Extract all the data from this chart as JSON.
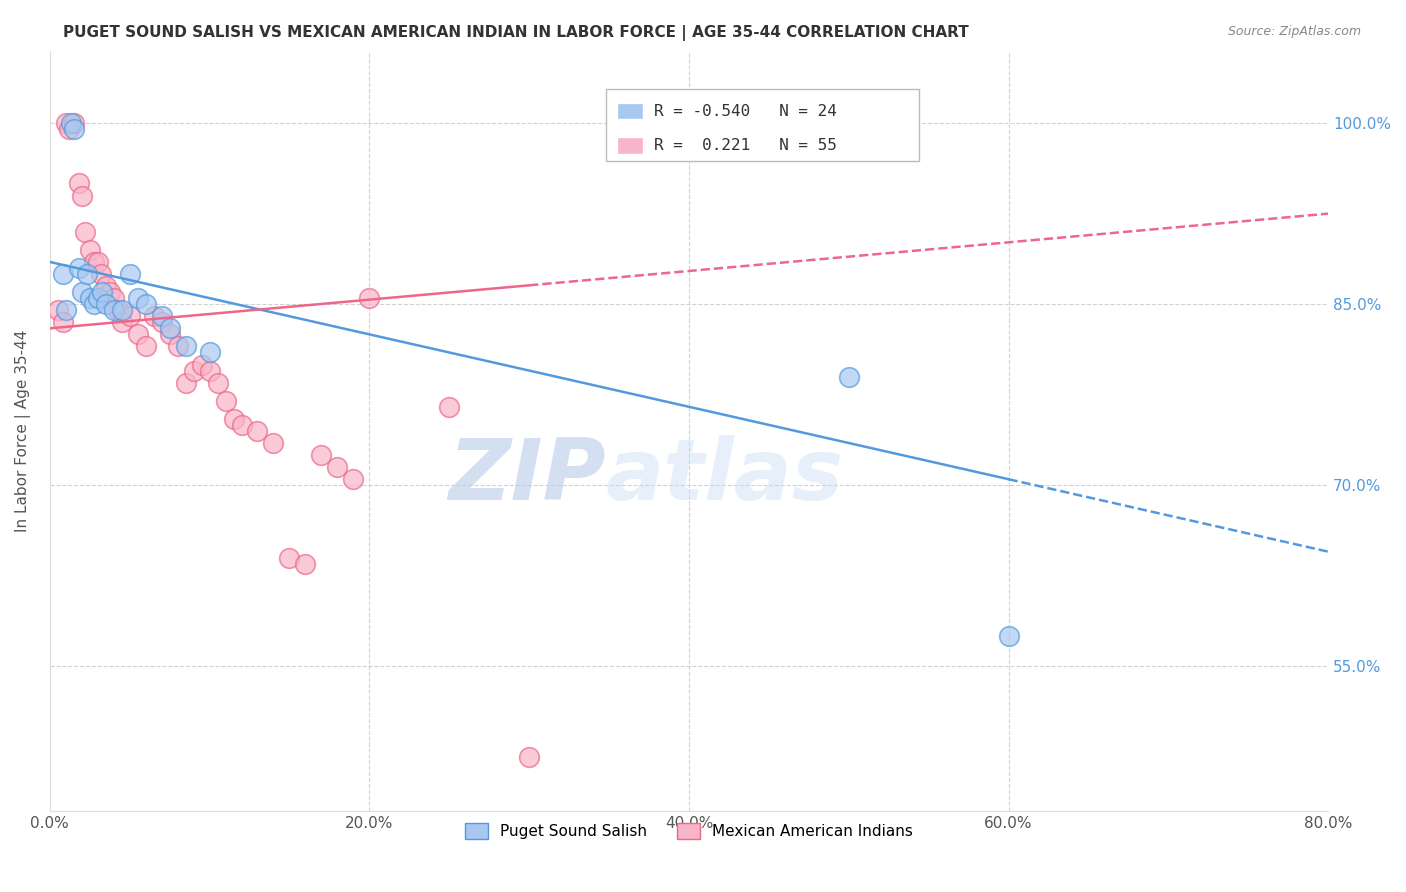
{
  "title": "PUGET SOUND SALISH VS MEXICAN AMERICAN INDIAN IN LABOR FORCE | AGE 35-44 CORRELATION CHART",
  "source": "Source: ZipAtlas.com",
  "ylabel": "In Labor Force | Age 35-44",
  "x_tick_labels": [
    "0.0%",
    "20.0%",
    "40.0%",
    "60.0%",
    "80.0%"
  ],
  "x_tick_positions": [
    0.0,
    20.0,
    40.0,
    60.0,
    80.0
  ],
  "y_tick_labels": [
    "55.0%",
    "70.0%",
    "85.0%",
    "100.0%"
  ],
  "y_tick_positions": [
    55.0,
    70.0,
    85.0,
    100.0
  ],
  "xlim": [
    0.0,
    80.0
  ],
  "ylim": [
    43.0,
    106.0
  ],
  "legend_blue_label": "Puget Sound Salish",
  "legend_pink_label": "Mexican American Indians",
  "R_blue": -0.54,
  "N_blue": 24,
  "R_pink": 0.221,
  "N_pink": 55,
  "blue_color": "#a8c8f0",
  "pink_color": "#f8b4c8",
  "blue_line_color": "#5599dd",
  "pink_line_color": "#ee6688",
  "watermark_zip": "ZIP",
  "watermark_atlas": "atlas",
  "blue_scatter_x": [
    0.8,
    1.0,
    1.3,
    1.5,
    1.8,
    2.0,
    2.3,
    2.5,
    2.8,
    3.0,
    3.3,
    3.5,
    4.0,
    4.5,
    5.0,
    5.5,
    6.0,
    7.0,
    7.5,
    8.5,
    10.0,
    50.0,
    60.0
  ],
  "blue_scatter_y": [
    87.5,
    84.5,
    100.0,
    99.5,
    88.0,
    86.0,
    87.5,
    85.5,
    85.0,
    85.5,
    86.0,
    85.0,
    84.5,
    84.5,
    87.5,
    85.5,
    85.0,
    84.0,
    83.0,
    81.5,
    81.0,
    79.0,
    57.5
  ],
  "pink_scatter_x": [
    0.5,
    0.8,
    1.0,
    1.2,
    1.5,
    1.8,
    2.0,
    2.2,
    2.5,
    2.8,
    3.0,
    3.2,
    3.5,
    3.8,
    4.0,
    4.3,
    4.5,
    5.0,
    5.5,
    6.0,
    6.5,
    7.0,
    7.5,
    8.0,
    8.5,
    9.0,
    9.5,
    10.0,
    10.5,
    11.0,
    11.5,
    12.0,
    13.0,
    14.0,
    15.0,
    16.0,
    17.0,
    18.0,
    19.0,
    20.0,
    25.0,
    30.0
  ],
  "pink_scatter_y": [
    84.5,
    83.5,
    100.0,
    99.5,
    100.0,
    95.0,
    94.0,
    91.0,
    89.5,
    88.5,
    88.5,
    87.5,
    86.5,
    86.0,
    85.5,
    84.5,
    83.5,
    84.0,
    82.5,
    81.5,
    84.0,
    83.5,
    82.5,
    81.5,
    78.5,
    79.5,
    80.0,
    79.5,
    78.5,
    77.0,
    75.5,
    75.0,
    74.5,
    73.5,
    64.0,
    63.5,
    72.5,
    71.5,
    70.5,
    85.5,
    76.5,
    47.5
  ],
  "blue_trendline_x0": 0.0,
  "blue_trendline_y0": 88.5,
  "blue_trendline_x1": 80.0,
  "blue_trendline_y1": 64.5,
  "pink_trendline_x0": 0.0,
  "pink_trendline_y0": 83.0,
  "pink_trendline_x1": 80.0,
  "pink_trendline_y1": 92.5,
  "blue_solid_xmax": 60.0,
  "pink_solid_xmax": 30.0
}
